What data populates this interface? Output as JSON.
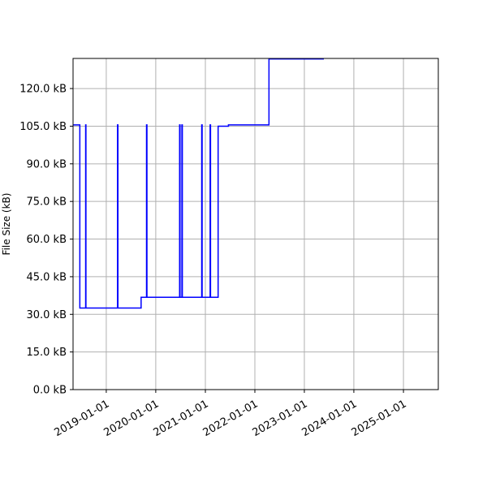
{
  "chart_data": {
    "type": "line",
    "title": "",
    "xlabel": "",
    "ylabel": "File Size (kB)",
    "x_axis_type": "date",
    "xlim": [
      "2018-05-01",
      "2025-09-15"
    ],
    "ylim": [
      0,
      132
    ],
    "x_ticks": [
      "2019-01-01",
      "2020-01-01",
      "2021-01-01",
      "2022-01-01",
      "2023-01-01",
      "2024-01-01",
      "2025-01-01"
    ],
    "y_ticks": [
      {
        "value": 0,
        "label": "0.0 kB"
      },
      {
        "value": 15,
        "label": "15.0 kB"
      },
      {
        "value": 30,
        "label": "30.0 kB"
      },
      {
        "value": 45,
        "label": "45.0 kB"
      },
      {
        "value": 60,
        "label": "60.0 kB"
      },
      {
        "value": 75,
        "label": "75.0 kB"
      },
      {
        "value": 90,
        "label": "90.0 kB"
      },
      {
        "value": 105,
        "label": "105.0 kB"
      },
      {
        "value": 120,
        "label": "120.0 kB"
      }
    ],
    "grid": true,
    "line_style": "steps-post",
    "line_color": "#0000ff",
    "series": [
      {
        "x": [
          "2018-05-01",
          "2018-06-05",
          "2018-06-20",
          "2018-08-02",
          "2018-08-04",
          "2019-03-25",
          "2019-03-28",
          "2019-09-15",
          "2019-10-25",
          "2019-10-28",
          "2020-06-25",
          "2020-06-28",
          "2020-07-12",
          "2020-07-15",
          "2020-12-05",
          "2020-12-08",
          "2021-02-05",
          "2021-02-08",
          "2021-04-05",
          "2021-04-20",
          "2021-06-20",
          "2022-04-15",
          "2023-05-25"
        ],
        "y": [
          105.5,
          105.5,
          32.5,
          105.5,
          32.5,
          105.5,
          32.5,
          36.8,
          105.5,
          36.8,
          105.5,
          36.8,
          105.5,
          36.8,
          105.5,
          36.8,
          105.5,
          36.8,
          105.0,
          105.0,
          105.5,
          131.8,
          131.8
        ]
      }
    ]
  }
}
